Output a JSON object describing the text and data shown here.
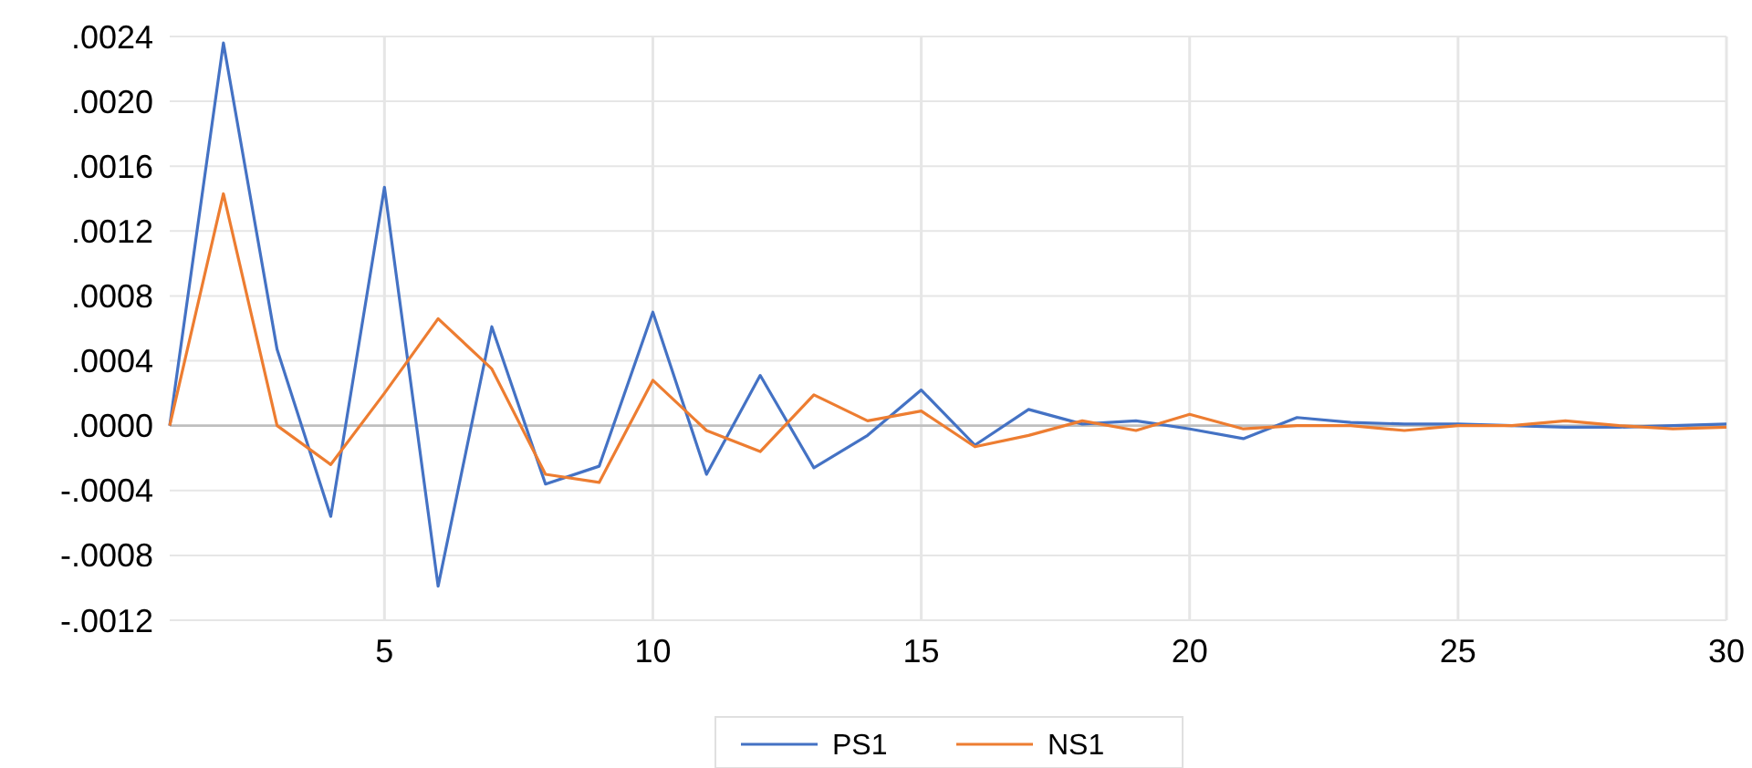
{
  "chart_data": {
    "type": "line",
    "x": [
      1,
      2,
      3,
      4,
      5,
      6,
      7,
      8,
      9,
      10,
      11,
      12,
      13,
      14,
      15,
      16,
      17,
      18,
      19,
      20,
      21,
      22,
      23,
      24,
      25,
      26,
      27,
      28,
      29,
      30
    ],
    "series": [
      {
        "name": "PS1",
        "color": "#4472c4",
        "values": [
          0,
          0.00236,
          0.00047,
          -0.00056,
          0.00147,
          -0.00099,
          0.00061,
          -0.00036,
          -0.00025,
          0.0007,
          -0.0003,
          0.00031,
          -0.00026,
          -6e-05,
          0.00022,
          -0.00012,
          0.0001,
          1e-05,
          3e-05,
          -2e-05,
          -8e-05,
          5e-05,
          2e-05,
          1e-05,
          1e-05,
          0,
          -1e-05,
          -1e-05,
          0,
          1e-05
        ]
      },
      {
        "name": "NS1",
        "color": "#ed7d31",
        "values": [
          0,
          0.00143,
          0,
          -0.00024,
          0.0002,
          0.00066,
          0.00035,
          -0.0003,
          -0.00035,
          0.00028,
          -3e-05,
          -0.00016,
          0.00019,
          3e-05,
          9e-05,
          -0.00013,
          -6e-05,
          3e-05,
          -3e-05,
          7e-05,
          -2e-05,
          0,
          0,
          -3e-05,
          0,
          0,
          3e-05,
          0,
          -2e-05,
          -1e-05
        ]
      }
    ],
    "xlim": [
      1,
      30
    ],
    "xticks": [
      5,
      10,
      15,
      20,
      25,
      30
    ],
    "ylim": [
      -0.0012,
      0.0024
    ],
    "yticks": [
      {
        "value": -0.0012,
        "label": "-.0012"
      },
      {
        "value": -0.0008,
        "label": "-.0008"
      },
      {
        "value": -0.0004,
        "label": "-.0004"
      },
      {
        "value": 0,
        "label": ".0000"
      },
      {
        "value": 0.0004,
        "label": ".0004"
      },
      {
        "value": 0.0008,
        "label": ".0008"
      },
      {
        "value": 0.0012,
        "label": ".0012"
      },
      {
        "value": 0.0016,
        "label": ".0016"
      },
      {
        "value": 0.002,
        "label": ".0020"
      },
      {
        "value": 0.0024,
        "label": ".0024"
      }
    ],
    "grid": true,
    "legend": "bottom",
    "marker": "none",
    "line_style": "solid"
  }
}
